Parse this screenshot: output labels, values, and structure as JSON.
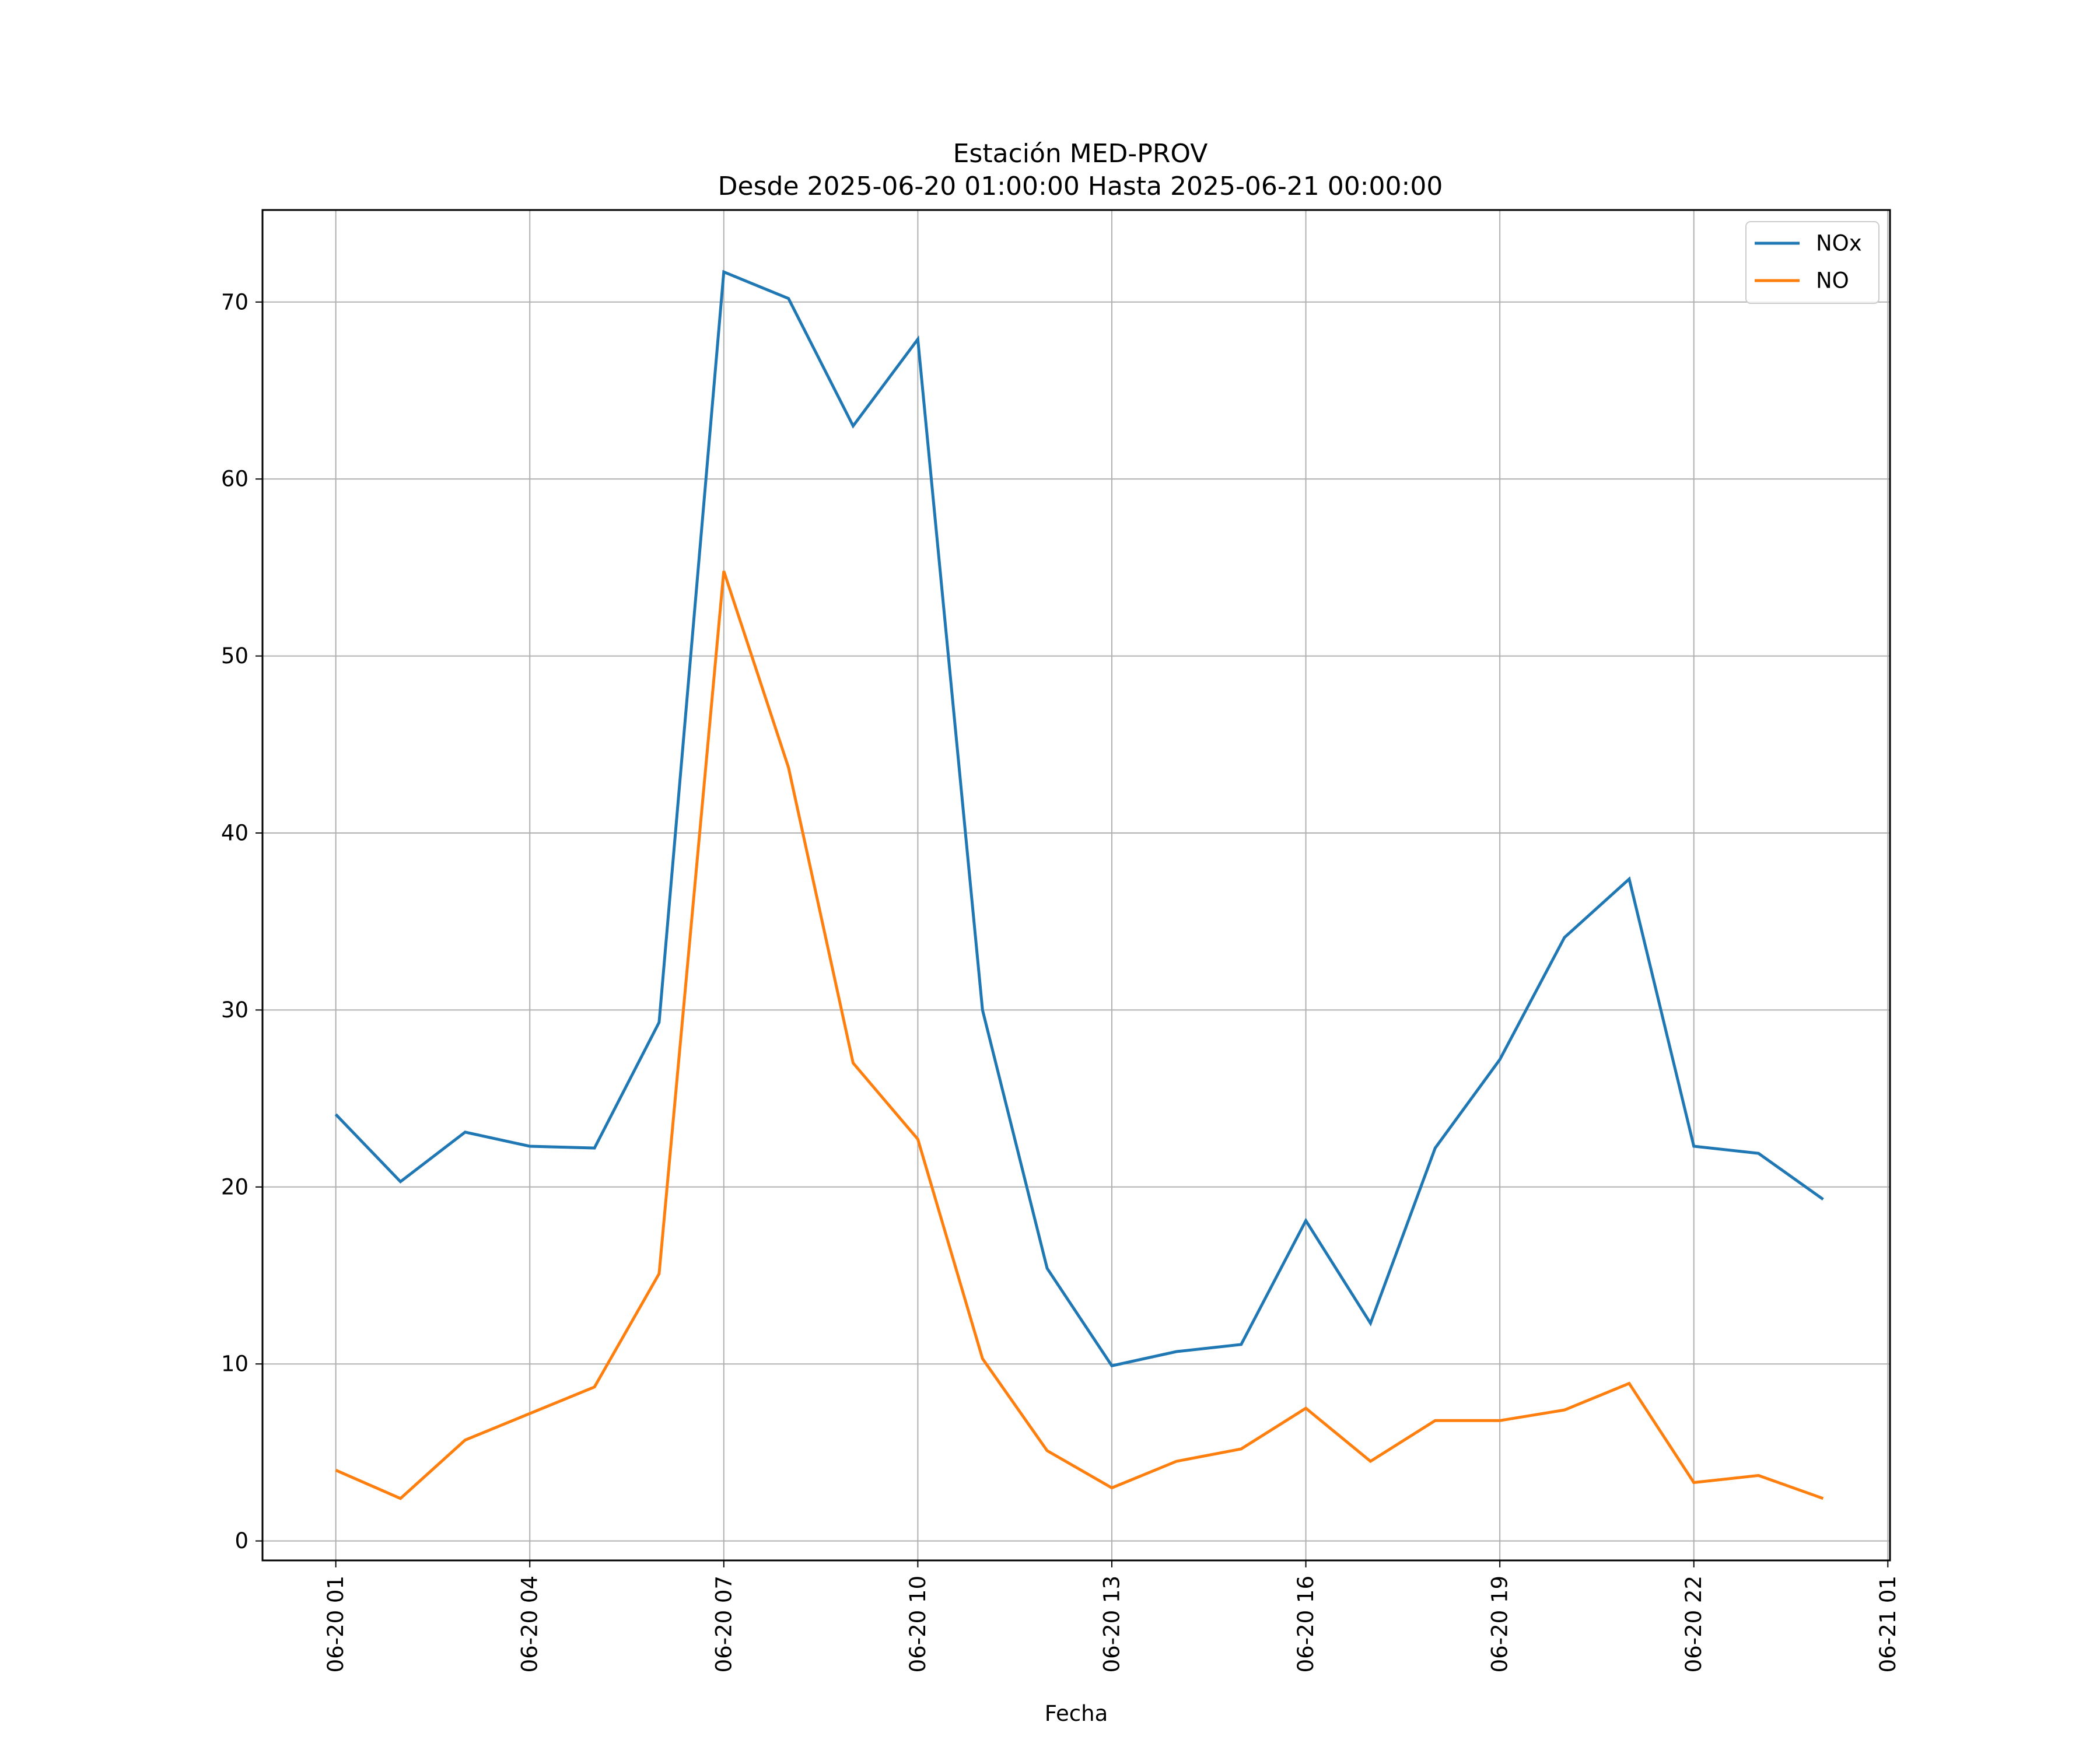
{
  "chart_data": {
    "type": "line",
    "title": "Estación MED-PROV",
    "subtitle": "Desde 2025-06-20 01:00:00 Hasta 2025-06-21 00:00:00",
    "xlabel": "Fecha",
    "ylabel": "",
    "x": [
      "2025-06-20 01:00",
      "2025-06-20 02:00",
      "2025-06-20 03:00",
      "2025-06-20 04:00",
      "2025-06-20 05:00",
      "2025-06-20 06:00",
      "2025-06-20 07:00",
      "2025-06-20 08:00",
      "2025-06-20 09:00",
      "2025-06-20 10:00",
      "2025-06-20 11:00",
      "2025-06-20 12:00",
      "2025-06-20 13:00",
      "2025-06-20 14:00",
      "2025-06-20 15:00",
      "2025-06-20 16:00",
      "2025-06-20 17:00",
      "2025-06-20 18:00",
      "2025-06-20 19:00",
      "2025-06-20 20:00",
      "2025-06-20 21:00",
      "2025-06-20 22:00",
      "2025-06-20 23:00",
      "2025-06-21 00:00"
    ],
    "xlim": [
      "2025-06-19 23:52",
      "2025-06-21 01:02"
    ],
    "ylim": [
      -1.1,
      75.2
    ],
    "x_ticks": [
      "06-20 01",
      "06-20 04",
      "06-20 07",
      "06-20 10",
      "06-20 13",
      "06-20 16",
      "06-20 19",
      "06-20 22",
      "06-21 01"
    ],
    "y_ticks": [
      0,
      10,
      20,
      30,
      40,
      50,
      60,
      70
    ],
    "grid": true,
    "legend_position": "top-right",
    "series": [
      {
        "name": "NOx",
        "color": "#1f77b4",
        "values": [
          24.1,
          20.3,
          23.1,
          22.3,
          22.2,
          29.3,
          71.7,
          70.2,
          63.0,
          67.9,
          30.0,
          15.4,
          9.9,
          10.7,
          11.1,
          18.1,
          12.3,
          22.2,
          27.2,
          34.1,
          37.4,
          22.3,
          21.9,
          19.3
        ]
      },
      {
        "name": "NO",
        "color": "#ff7f0e",
        "values": [
          4.0,
          2.4,
          5.7,
          7.2,
          8.7,
          15.1,
          54.8,
          43.7,
          27.0,
          22.7,
          10.3,
          5.1,
          3.0,
          4.5,
          5.2,
          7.5,
          4.5,
          6.8,
          6.8,
          7.4,
          8.9,
          3.3,
          3.7,
          2.4
        ]
      }
    ]
  }
}
